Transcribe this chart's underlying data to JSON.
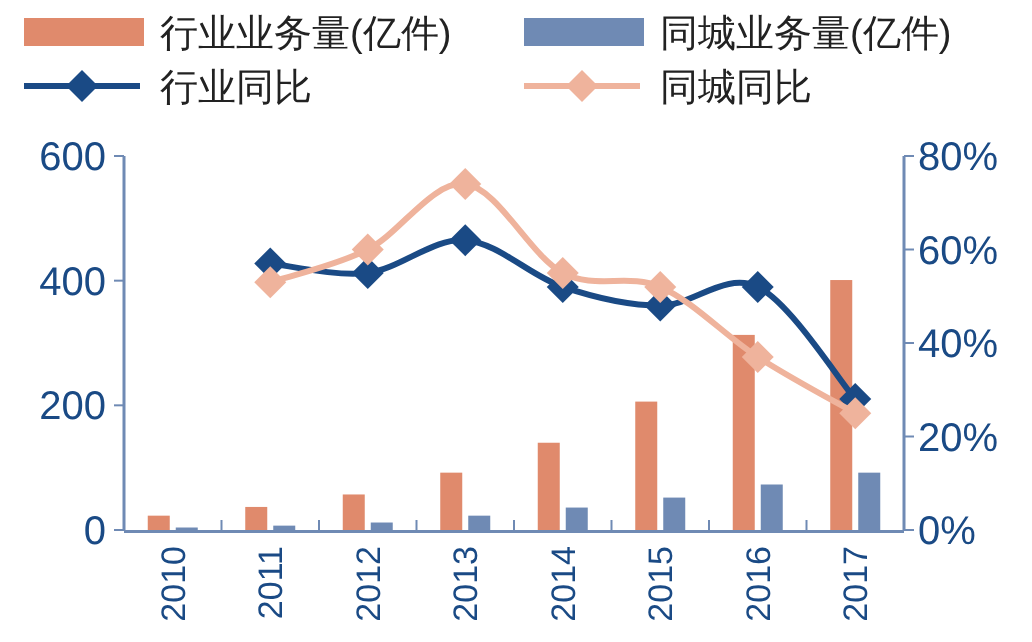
{
  "chart_data": {
    "type": "bar",
    "categories": [
      "2010",
      "2011",
      "2012",
      "2013",
      "2014",
      "2015",
      "2016",
      "2017"
    ],
    "series": [
      {
        "name": "行业业务量(亿件)",
        "color": "#e08a6c",
        "values": [
          23,
          37,
          57,
          92,
          140,
          206,
          313,
          401
        ]
      },
      {
        "name": "同城业务量(亿件)",
        "color": "#6f8ab4",
        "values": [
          4,
          7,
          12,
          23,
          36,
          52,
          73,
          92
        ]
      },
      {
        "name": "行业同比",
        "type": "line",
        "axis": "y2",
        "color": "#1a4a85",
        "values": [
          null,
          57,
          55,
          62,
          52,
          48,
          52,
          28
        ]
      },
      {
        "name": "同城同比",
        "type": "line",
        "axis": "y2",
        "color": "#efb39c",
        "values": [
          null,
          53,
          60,
          74,
          55,
          52,
          37,
          25
        ]
      }
    ],
    "ylim": [
      0,
      600
    ],
    "yticks": [
      0,
      200,
      400,
      600
    ],
    "y2lim": [
      0,
      80
    ],
    "y2ticks": [
      {
        "value": 0,
        "label": "0%"
      },
      {
        "value": 20,
        "label": "20%"
      },
      {
        "value": 40,
        "label": "40%"
      },
      {
        "value": 60,
        "label": "60%"
      },
      {
        "value": 80,
        "label": "80%"
      }
    ],
    "marker": "diamond",
    "line_style": "solid",
    "legend": "top",
    "grid": false
  }
}
